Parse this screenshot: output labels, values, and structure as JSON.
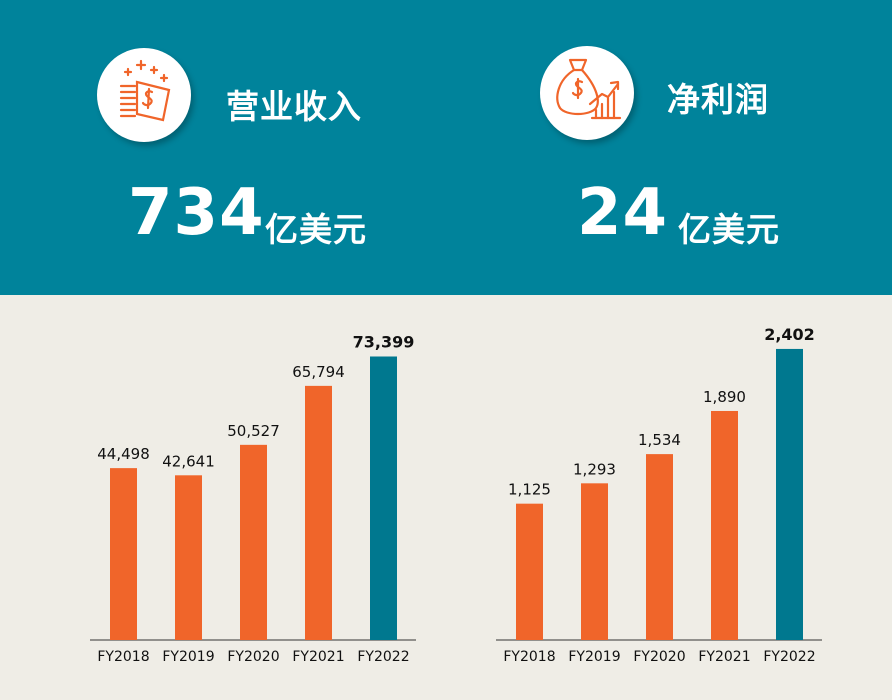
{
  "colors": {
    "band": "#00839b",
    "background": "#efede6",
    "bar": "#f0652a",
    "highlight_bar": "#00788f",
    "icon": "#f0652a"
  },
  "kpis": [
    {
      "label": "营业收入",
      "value": "734",
      "unit": "亿美元",
      "icon": "money-stack-icon"
    },
    {
      "label": "净利润",
      "value": "24",
      "unit": "亿美元",
      "icon": "money-bag-growth-icon"
    }
  ],
  "chart_data": [
    {
      "type": "bar",
      "categories": [
        "FY2018",
        "FY2019",
        "FY2020",
        "FY2021",
        "FY2022"
      ],
      "values": [
        44498,
        42641,
        50527,
        65794,
        73399
      ],
      "value_labels": [
        "44,498",
        "42,641",
        "50,527",
        "65,794",
        "73,399"
      ],
      "highlight_index": 4,
      "ylim": [
        0,
        80000
      ]
    },
    {
      "type": "bar",
      "categories": [
        "FY2018",
        "FY2019",
        "FY2020",
        "FY2021",
        "FY2022"
      ],
      "values": [
        1125,
        1293,
        1534,
        1890,
        2402
      ],
      "value_labels": [
        "1,125",
        "1,293",
        "1,534",
        "1,890",
        "2,402"
      ],
      "highlight_index": 4,
      "ylim": [
        0,
        2550
      ]
    }
  ]
}
